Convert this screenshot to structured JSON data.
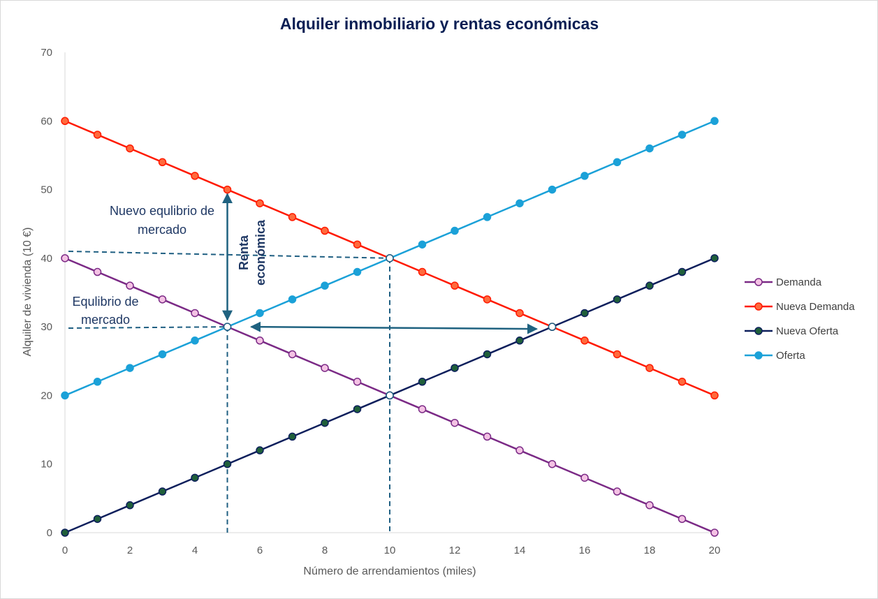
{
  "chart_data": {
    "type": "line",
    "title": "Alquiler  inmobiliario y rentas económicas",
    "xlabel": "Número de arrendamientos (miles)",
    "ylabel": "Alquiler de vivienda (10 €)",
    "xlim": [
      0,
      20
    ],
    "ylim": [
      0,
      70
    ],
    "xticks": [
      0,
      2,
      4,
      6,
      8,
      10,
      12,
      14,
      16,
      18,
      20
    ],
    "yticks": [
      0,
      10,
      20,
      30,
      40,
      50,
      60,
      70
    ],
    "grid": false,
    "legend_position": "right",
    "x": [
      0,
      1,
      2,
      3,
      4,
      5,
      6,
      7,
      8,
      9,
      10,
      11,
      12,
      13,
      14,
      15,
      16,
      17,
      18,
      19,
      20
    ],
    "series": [
      {
        "name": "Demanda",
        "color": "#7b2a86",
        "marker_fill": "#f4c2e4",
        "values": [
          40,
          38,
          36,
          34,
          32,
          30,
          28,
          26,
          24,
          22,
          20,
          18,
          16,
          14,
          12,
          10,
          8,
          6,
          4,
          2,
          0
        ]
      },
      {
        "name": "Nueva Demanda",
        "color": "#ff1a00",
        "marker_fill": "#ff6a3d",
        "values": [
          60,
          58,
          56,
          54,
          52,
          50,
          48,
          46,
          44,
          42,
          40,
          38,
          36,
          34,
          32,
          30,
          28,
          26,
          24,
          22,
          20
        ]
      },
      {
        "name": "Nueva Oferta",
        "color": "#0d1f5c",
        "marker_fill": "#1f5f3a",
        "values": [
          0,
          2,
          4,
          6,
          8,
          10,
          12,
          14,
          16,
          18,
          20,
          22,
          24,
          26,
          28,
          30,
          32,
          34,
          36,
          38,
          40
        ]
      },
      {
        "name": "Oferta",
        "color": "#1ba1d8",
        "marker_fill": "#1ba1d8",
        "values": [
          20,
          22,
          24,
          26,
          28,
          30,
          32,
          34,
          36,
          38,
          40,
          42,
          44,
          46,
          48,
          50,
          52,
          54,
          56,
          58,
          60
        ]
      }
    ],
    "hollow_points": [
      [
        5,
        30
      ],
      [
        10,
        40
      ],
      [
        10,
        20
      ],
      [
        15,
        30
      ]
    ],
    "annotations": {
      "nuevo_equilibrio": [
        "Nuevo equlibrio de",
        "mercado"
      ],
      "equilibrio": [
        "Equlibrio de",
        "mercado"
      ],
      "renta_economica": [
        "Renta",
        "económica"
      ]
    },
    "annotation_colors": {
      "dashed": "#1f5f82",
      "arrow": "#1f6280",
      "text": "#1f3864"
    }
  }
}
